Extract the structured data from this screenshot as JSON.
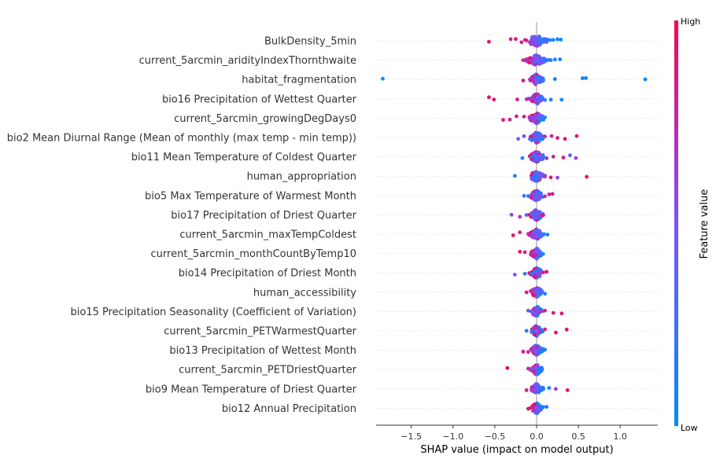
{
  "chart_data": {
    "type": "scatter",
    "subtype": "shap-beeswarm",
    "xlabel": "SHAP value (impact on model output)",
    "x_ticks": [
      "−1.5",
      "−1.0",
      "−0.5",
      "0.0",
      "0.5",
      "1.0"
    ],
    "x_tick_values": [
      -1.5,
      -1.0,
      -0.5,
      0.0,
      0.5,
      1.0
    ],
    "xlim": [
      -1.92,
      1.45
    ],
    "grid": "horizontal-dotted",
    "colorbar": {
      "title": "Feature value",
      "high": "High",
      "low": "Low",
      "colors": [
        "#008bfb",
        "#ff0052"
      ]
    },
    "features": [
      {
        "name": "BulkDensity_5min",
        "points": [
          [
            -0.57,
            0.9
          ],
          [
            -0.31,
            0.8
          ],
          [
            -0.25,
            0.85
          ],
          [
            -0.18,
            0.8
          ],
          [
            -0.12,
            0.75
          ],
          [
            -0.08,
            0.7
          ],
          [
            -0.05,
            0.6
          ],
          [
            -0.03,
            0.6
          ],
          [
            -0.02,
            0.5
          ],
          [
            0.0,
            0.5
          ],
          [
            0.02,
            0.3
          ],
          [
            0.05,
            0.25
          ],
          [
            0.08,
            0.2
          ],
          [
            0.12,
            0.15
          ],
          [
            0.16,
            0.1
          ],
          [
            0.2,
            0.1
          ],
          [
            0.25,
            0.05
          ],
          [
            0.29,
            0.0
          ]
        ],
        "density": 0.12
      },
      {
        "name": "current_5arcmin_aridityIndexThornthwaite",
        "points": [
          [
            -0.16,
            0.8
          ],
          [
            -0.12,
            0.7
          ],
          [
            -0.08,
            0.7
          ],
          [
            -0.05,
            0.6
          ],
          [
            -0.02,
            0.55
          ],
          [
            0.0,
            0.5
          ],
          [
            0.03,
            0.4
          ],
          [
            0.07,
            0.3
          ],
          [
            0.12,
            0.2
          ],
          [
            0.17,
            0.15
          ],
          [
            0.22,
            0.1
          ],
          [
            0.28,
            0.05
          ]
        ],
        "density": 0.11
      },
      {
        "name": "habitat_fragmentation",
        "points": [
          [
            -1.84,
            0.0
          ],
          [
            -0.16,
            0.85
          ],
          [
            -0.08,
            0.7
          ],
          [
            -0.03,
            0.6
          ],
          [
            0.0,
            0.5
          ],
          [
            0.04,
            0.3
          ],
          [
            0.08,
            0.2
          ],
          [
            0.22,
            0.1
          ],
          [
            0.55,
            0.05
          ],
          [
            0.59,
            0.05
          ],
          [
            1.3,
            0.05
          ]
        ],
        "density": 0.07
      },
      {
        "name": "bio16 Precipitation of Wettest Quarter",
        "points": [
          [
            -0.57,
            0.95
          ],
          [
            -0.51,
            0.9
          ],
          [
            -0.23,
            0.85
          ],
          [
            -0.12,
            0.7
          ],
          [
            -0.06,
            0.6
          ],
          [
            -0.02,
            0.55
          ],
          [
            0.0,
            0.5
          ],
          [
            0.04,
            0.35
          ],
          [
            0.1,
            0.2
          ],
          [
            0.17,
            0.15
          ],
          [
            0.3,
            0.05
          ]
        ],
        "density": 0.08
      },
      {
        "name": "current_5arcmin_growingDegDays0",
        "points": [
          [
            -0.4,
            0.9
          ],
          [
            -0.32,
            0.8
          ],
          [
            -0.24,
            0.85
          ],
          [
            -0.15,
            0.8
          ],
          [
            -0.08,
            0.7
          ],
          [
            -0.04,
            0.6
          ],
          [
            -0.01,
            0.55
          ],
          [
            0.02,
            0.4
          ],
          [
            0.06,
            0.2
          ],
          [
            0.1,
            0.1
          ]
        ],
        "density": 0.08
      },
      {
        "name": "bio2 Mean Diurnal Range (Mean of monthly (max temp - min temp))",
        "points": [
          [
            -0.22,
            0.5
          ],
          [
            -0.15,
            0.3
          ],
          [
            -0.08,
            0.25
          ],
          [
            -0.03,
            0.2
          ],
          [
            0.0,
            0.3
          ],
          [
            0.04,
            0.5
          ],
          [
            0.1,
            0.7
          ],
          [
            0.18,
            0.8
          ],
          [
            0.25,
            0.85
          ],
          [
            0.34,
            0.9
          ],
          [
            0.48,
            0.9
          ]
        ],
        "density": 0.08
      },
      {
        "name": "bio11 Mean Temperature of Coldest Quarter",
        "points": [
          [
            -0.17,
            0.1
          ],
          [
            -0.06,
            0.15
          ],
          [
            -0.02,
            0.2
          ],
          [
            0.0,
            0.3
          ],
          [
            0.05,
            0.5
          ],
          [
            0.12,
            0.7
          ],
          [
            0.2,
            0.8
          ],
          [
            0.32,
            0.85
          ],
          [
            0.4,
            0.4
          ],
          [
            0.47,
            0.6
          ]
        ],
        "density": 0.08
      },
      {
        "name": "human_appropriation",
        "points": [
          [
            -0.26,
            0.05
          ],
          [
            -0.04,
            0.1
          ],
          [
            0.0,
            0.2
          ],
          [
            0.04,
            0.4
          ],
          [
            0.1,
            0.7
          ],
          [
            0.17,
            0.85
          ],
          [
            0.25,
            0.6
          ],
          [
            0.6,
            0.95
          ]
        ],
        "density": 0.08
      },
      {
        "name": "bio5 Max Temperature of Warmest Month",
        "points": [
          [
            -0.15,
            0.2
          ],
          [
            -0.1,
            0.3
          ],
          [
            -0.04,
            0.4
          ],
          [
            0.0,
            0.5
          ],
          [
            0.04,
            0.6
          ],
          [
            0.1,
            0.7
          ],
          [
            0.15,
            0.8
          ],
          [
            0.19,
            0.85
          ]
        ],
        "density": 0.07
      },
      {
        "name": "bio17 Precipitation of Driest Quarter",
        "points": [
          [
            -0.3,
            0.6
          ],
          [
            -0.2,
            0.7
          ],
          [
            -0.12,
            0.4
          ],
          [
            -0.06,
            0.3
          ],
          [
            -0.02,
            0.3
          ],
          [
            0.0,
            0.5
          ],
          [
            0.04,
            0.7
          ],
          [
            0.08,
            0.85
          ]
        ],
        "density": 0.07
      },
      {
        "name": "current_5arcmin_maxTempColdest",
        "points": [
          [
            -0.28,
            0.9
          ],
          [
            -0.2,
            0.85
          ],
          [
            -0.1,
            0.7
          ],
          [
            -0.04,
            0.6
          ],
          [
            0.0,
            0.5
          ],
          [
            0.03,
            0.3
          ],
          [
            0.08,
            0.2
          ],
          [
            0.13,
            0.1
          ]
        ],
        "density": 0.07
      },
      {
        "name": "current_5arcmin_monthCountByTemp10",
        "points": [
          [
            -0.2,
            0.9
          ],
          [
            -0.14,
            0.85
          ],
          [
            -0.07,
            0.8
          ],
          [
            -0.03,
            0.7
          ],
          [
            0.0,
            0.5
          ],
          [
            0.04,
            0.3
          ]
        ],
        "density": 0.06
      },
      {
        "name": "bio14 Precipitation of Driest Month",
        "points": [
          [
            -0.26,
            0.5
          ],
          [
            -0.14,
            0.2
          ],
          [
            -0.06,
            0.15
          ],
          [
            -0.02,
            0.2
          ],
          [
            0.0,
            0.3
          ],
          [
            0.04,
            0.6
          ],
          [
            0.08,
            0.8
          ],
          [
            0.12,
            0.9
          ]
        ],
        "density": 0.07
      },
      {
        "name": "human_accessibility",
        "points": [
          [
            -0.12,
            0.85
          ],
          [
            -0.07,
            0.8
          ],
          [
            -0.03,
            0.6
          ],
          [
            0.0,
            0.4
          ],
          [
            0.04,
            0.2
          ],
          [
            0.1,
            0.1
          ]
        ],
        "density": 0.06
      },
      {
        "name": "bio15 Precipitation Seasonality (Coefficient of Variation)",
        "points": [
          [
            -0.1,
            0.3
          ],
          [
            -0.05,
            0.4
          ],
          [
            -0.02,
            0.5
          ],
          [
            0.0,
            0.6
          ],
          [
            0.05,
            0.7
          ],
          [
            0.1,
            0.8
          ],
          [
            0.2,
            0.9
          ],
          [
            0.3,
            0.9
          ]
        ],
        "density": 0.06
      },
      {
        "name": "current_5arcmin_PETWarmestQuarter",
        "points": [
          [
            -0.12,
            0.1
          ],
          [
            -0.06,
            0.2
          ],
          [
            -0.02,
            0.3
          ],
          [
            0.0,
            0.5
          ],
          [
            0.04,
            0.7
          ],
          [
            0.1,
            0.8
          ],
          [
            0.23,
            0.9
          ],
          [
            0.36,
            0.9
          ]
        ],
        "density": 0.06
      },
      {
        "name": "bio13 Precipitation of Wettest Month",
        "points": [
          [
            -0.16,
            0.85
          ],
          [
            -0.1,
            0.8
          ],
          [
            -0.05,
            0.7
          ],
          [
            -0.02,
            0.6
          ],
          [
            0.0,
            0.5
          ],
          [
            0.03,
            0.3
          ],
          [
            0.07,
            0.2
          ],
          [
            0.1,
            0.1
          ]
        ],
        "density": 0.06
      },
      {
        "name": "current_5arcmin_PETDriestQuarter",
        "points": [
          [
            -0.35,
            0.95
          ],
          [
            -0.1,
            0.8
          ],
          [
            -0.05,
            0.6
          ],
          [
            -0.01,
            0.4
          ],
          [
            0.02,
            0.2
          ],
          [
            0.06,
            0.1
          ]
        ],
        "density": 0.06
      },
      {
        "name": "bio9 Mean Temperature of Driest Quarter",
        "points": [
          [
            -0.12,
            0.8
          ],
          [
            -0.06,
            0.7
          ],
          [
            -0.02,
            0.5
          ],
          [
            0.0,
            0.4
          ],
          [
            0.04,
            0.3
          ],
          [
            0.08,
            0.2
          ],
          [
            0.15,
            0.1
          ],
          [
            0.23,
            0.6
          ],
          [
            0.37,
            0.9
          ]
        ],
        "density": 0.06
      },
      {
        "name": "bio12 Annual Precipitation",
        "points": [
          [
            -0.1,
            0.85
          ],
          [
            -0.05,
            0.8
          ],
          [
            -0.02,
            0.7
          ],
          [
            0.0,
            0.5
          ],
          [
            0.04,
            0.3
          ],
          [
            0.08,
            0.2
          ],
          [
            0.12,
            0.15
          ]
        ],
        "density": 0.06
      }
    ]
  }
}
